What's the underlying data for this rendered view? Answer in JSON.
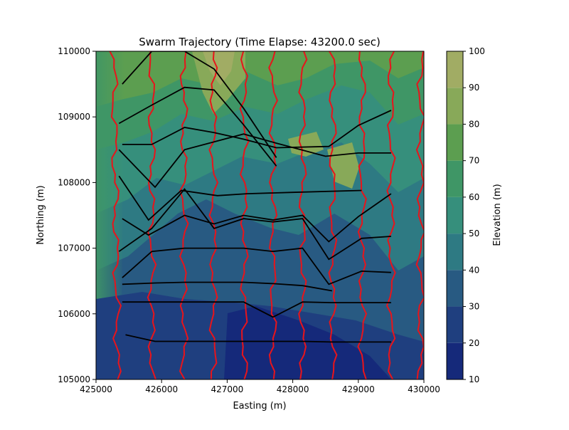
{
  "chart_data": {
    "type": "contour",
    "title": "Swarm Trajectory (Time Elapse: 43200.0 sec)",
    "xlabel": "Easting (m)",
    "ylabel": "Northing (m)",
    "xlim": [
      425000,
      430000
    ],
    "ylim": [
      105000,
      110000
    ],
    "xticks": [
      425000,
      426000,
      427000,
      428000,
      429000,
      430000
    ],
    "yticks": [
      105000,
      106000,
      107000,
      108000,
      109000,
      110000
    ],
    "xtick_labels": [
      "425000",
      "426000",
      "427000",
      "428000",
      "429000",
      "430000"
    ],
    "ytick_labels": [
      "105000",
      "106000",
      "107000",
      "108000",
      "109000",
      "110000"
    ],
    "colorbar": {
      "label": "Elevation (m)",
      "range": [
        10,
        100
      ],
      "ticks": [
        "10",
        "20",
        "30",
        "40",
        "50",
        "60",
        "70",
        "80",
        "90",
        "100"
      ],
      "levels": [
        {
          "from": 10,
          "to": 20,
          "color": "#15297a"
        },
        {
          "from": 20,
          "to": 30,
          "color": "#1f3f7f"
        },
        {
          "from": 30,
          "to": 40,
          "color": "#285a82"
        },
        {
          "from": 40,
          "to": 50,
          "color": "#2e7a83"
        },
        {
          "from": 50,
          "to": 60,
          "color": "#368f7c"
        },
        {
          "from": 60,
          "to": 70,
          "color": "#3f9666"
        },
        {
          "from": 70,
          "to": 80,
          "color": "#5c9e50"
        },
        {
          "from": 80,
          "to": 90,
          "color": "#88a959"
        },
        {
          "from": 90,
          "to": 100,
          "color": "#a1ac64"
        }
      ]
    },
    "agent_trajectories_easting": [
      425330,
      425850,
      426340,
      426790,
      427260,
      427700,
      428150,
      428610,
      429060,
      429500,
      429950
    ],
    "swarm_fronts": [
      [
        [
          425450,
          105680
        ],
        [
          425900,
          105580
        ],
        [
          426350,
          105580
        ],
        [
          426800,
          105580
        ],
        [
          427250,
          105580
        ],
        [
          427700,
          105580
        ],
        [
          428150,
          105580
        ],
        [
          428600,
          105570
        ],
        [
          429050,
          105570
        ],
        [
          429500,
          105570
        ]
      ],
      [
        [
          425400,
          106180
        ],
        [
          425900,
          106180
        ],
        [
          426350,
          106180
        ],
        [
          426800,
          106180
        ],
        [
          427250,
          106180
        ],
        [
          427700,
          105950
        ],
        [
          428150,
          106180
        ],
        [
          428600,
          106170
        ],
        [
          429050,
          106170
        ],
        [
          429500,
          106170
        ]
      ],
      [
        [
          425400,
          106450
        ],
        [
          425900,
          106470
        ],
        [
          426350,
          106480
        ],
        [
          426800,
          106480
        ],
        [
          427250,
          106480
        ],
        [
          427700,
          106460
        ],
        [
          428150,
          106430
        ],
        [
          428600,
          106350
        ]
      ],
      [
        [
          425400,
          106550
        ],
        [
          425850,
          106950
        ],
        [
          426350,
          107000
        ],
        [
          426800,
          107000
        ],
        [
          427250,
          107000
        ],
        [
          427700,
          106950
        ],
        [
          428150,
          107000
        ],
        [
          428550,
          106450
        ],
        [
          429050,
          106650
        ],
        [
          429500,
          106630
        ]
      ],
      [
        [
          425350,
          106950
        ],
        [
          425850,
          107300
        ],
        [
          426350,
          107900
        ],
        [
          426800,
          107300
        ],
        [
          427250,
          107450
        ],
        [
          427700,
          107400
        ],
        [
          428150,
          107450
        ],
        [
          428550,
          106830
        ],
        [
          429050,
          107150
        ],
        [
          429500,
          107180
        ]
      ],
      [
        [
          425400,
          107450
        ],
        [
          425800,
          107200
        ],
        [
          426350,
          107500
        ],
        [
          426800,
          107370
        ],
        [
          427250,
          107500
        ],
        [
          427700,
          107430
        ],
        [
          428150,
          107500
        ],
        [
          428550,
          107100
        ],
        [
          429000,
          107480
        ],
        [
          429500,
          107830
        ]
      ],
      [
        [
          425350,
          108100
        ],
        [
          425800,
          107430
        ],
        [
          426300,
          107880
        ],
        [
          426850,
          107800
        ],
        [
          427300,
          107830
        ],
        [
          428000,
          107850
        ],
        [
          429050,
          107880
        ]
      ],
      [
        [
          425350,
          108500
        ],
        [
          425900,
          107930
        ],
        [
          426350,
          108500
        ],
        [
          426800,
          108620
        ],
        [
          427250,
          108740
        ],
        [
          427750,
          108600
        ],
        [
          428500,
          108400
        ],
        [
          429000,
          108450
        ],
        [
          429500,
          108450
        ]
      ],
      [
        [
          425400,
          108580
        ],
        [
          425850,
          108580
        ],
        [
          426350,
          108840
        ],
        [
          426800,
          108760
        ],
        [
          427250,
          108660
        ],
        [
          427750,
          108530
        ],
        [
          428550,
          108550
        ],
        [
          429000,
          108870
        ],
        [
          429500,
          109100
        ]
      ],
      [
        [
          425350,
          108900
        ],
        [
          425850,
          109180
        ],
        [
          426350,
          109450
        ],
        [
          426800,
          109410
        ],
        [
          427250,
          108880
        ],
        [
          427750,
          108250
        ]
      ],
      [
        [
          425400,
          109500
        ],
        [
          425850,
          110000
        ],
        [
          426350,
          110000
        ],
        [
          426800,
          109730
        ],
        [
          427250,
          109130
        ],
        [
          427750,
          108380
        ]
      ]
    ]
  }
}
